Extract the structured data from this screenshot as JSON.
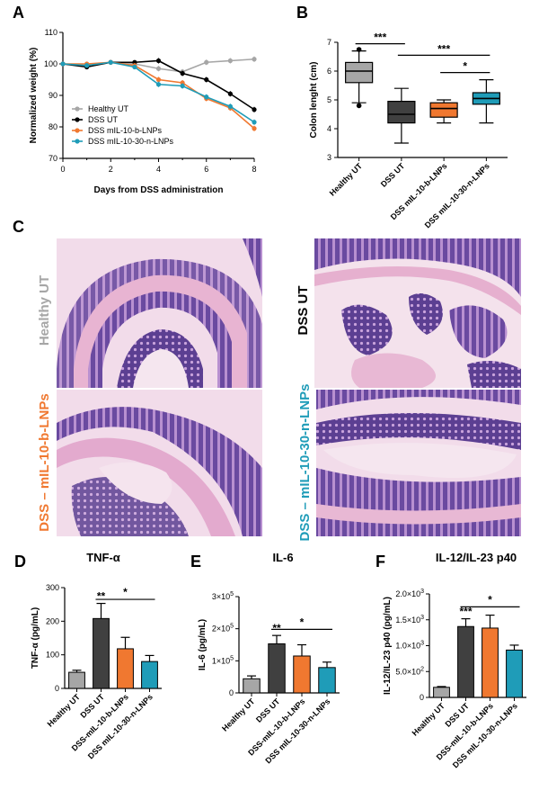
{
  "colors": {
    "healthy": "#a6a6a6",
    "dss": "#000000",
    "dss_dark": "#404040",
    "il10": "#f07830",
    "il1030": "#1f9cb8",
    "tissue_bg": "#f0d8e6",
    "tissue_pink": "#e3a9c9",
    "tissue_purple": "#5a3e8c"
  },
  "panels": {
    "a": "A",
    "b": "B",
    "c": "C",
    "d": "D",
    "e": "E",
    "f": "F"
  },
  "micro_labels": {
    "healthy": "Healthy UT",
    "dss": "DSS UT",
    "il10": "DSS – mIL-10-b-LNPs",
    "il1030": "DSS – mIL-10-30-n-LNPs"
  },
  "chart_data": [
    {
      "id": "A",
      "type": "line",
      "xlabel": "Days from DSS administration",
      "ylabel": "Normalized weight (%)",
      "xlim": [
        0,
        8
      ],
      "ylim": [
        70,
        110
      ],
      "xticks": [
        "0",
        "2",
        "4",
        "6",
        "8"
      ],
      "yticks": [
        "70",
        "80",
        "90",
        "100",
        "110"
      ],
      "legend_position": "bottom-left",
      "series": [
        {
          "name": "Healthy UT",
          "color": "#a6a6a6",
          "x": [
            0,
            1,
            2,
            3,
            4,
            5,
            6,
            7,
            8
          ],
          "y": [
            100,
            99.5,
            100.5,
            100,
            98.5,
            97.5,
            100.5,
            101,
            101.5
          ]
        },
        {
          "name": "DSS UT",
          "color": "#000000",
          "x": [
            0,
            1,
            2,
            3,
            4,
            5,
            6,
            7,
            8
          ],
          "y": [
            100,
            99,
            100.5,
            100.5,
            101,
            97,
            95,
            90.5,
            85.5
          ]
        },
        {
          "name": "DSS mIL-10-b-LNPs",
          "color": "#f07830",
          "x": [
            0,
            1,
            2,
            3,
            4,
            5,
            6,
            7,
            8
          ],
          "y": [
            100,
            100,
            100.5,
            99.5,
            95,
            94,
            89,
            86,
            79.5
          ]
        },
        {
          "name": "DSS mIL-10-30-n-LNPs",
          "color": "#1f9cb8",
          "x": [
            0,
            1,
            2,
            3,
            4,
            5,
            6,
            7,
            8
          ],
          "y": [
            100,
            99.5,
            100.5,
            99,
            93.5,
            93,
            89.5,
            86.5,
            81.5
          ]
        }
      ]
    },
    {
      "id": "B",
      "type": "boxplot",
      "ylabel": "Colon lenght (cm)",
      "ylim": [
        3,
        7
      ],
      "yticks": [
        "3",
        "4",
        "5",
        "6",
        "7"
      ],
      "categories": [
        "Healthy UT",
        "DSS UT",
        "DSS mIL-10-b-LNPs",
        "DSS mIL-10-30-n-LNPs"
      ],
      "boxes": [
        {
          "min": 4.9,
          "q1": 5.6,
          "median": 6.0,
          "q3": 6.3,
          "max": 6.7,
          "outliers": [
            4.8,
            6.75
          ],
          "color": "#a6a6a6"
        },
        {
          "min": 3.5,
          "q1": 4.2,
          "median": 4.5,
          "q3": 4.95,
          "max": 5.4,
          "outliers": [],
          "color": "#404040"
        },
        {
          "min": 4.2,
          "q1": 4.4,
          "median": 4.7,
          "q3": 4.9,
          "max": 5.0,
          "outliers": [],
          "color": "#f07830"
        },
        {
          "min": 4.2,
          "q1": 4.85,
          "median": 5.05,
          "q3": 5.25,
          "max": 5.7,
          "outliers": [],
          "color": "#1f9cb8"
        }
      ],
      "significance": [
        {
          "from": 0,
          "to": 1,
          "label": "***",
          "y": 6.95
        },
        {
          "from": 1,
          "to": 3,
          "label": "***",
          "y": 6.55
        },
        {
          "from": 2,
          "to": 3,
          "label": "*",
          "y": 5.95
        }
      ]
    },
    {
      "id": "D",
      "type": "bar",
      "title": "TNF-α",
      "ylabel": "TNF-α (pg/mL)",
      "ylim": [
        0,
        300
      ],
      "yticks": [
        "0",
        "100",
        "200",
        "300"
      ],
      "categories": [
        "Healthy UT",
        "DSS UT",
        "DSS-mIL-10-b-LNPs",
        "DSS mIL-10-30-n-LNPs"
      ],
      "values": [
        48,
        208,
        118,
        80
      ],
      "errors": [
        6,
        45,
        34,
        18
      ],
      "colors": [
        "#a6a6a6",
        "#404040",
        "#f07830",
        "#1f9cb8"
      ],
      "annotations": [
        {
          "category": 1,
          "label": "**"
        }
      ],
      "significance": [
        {
          "from": 1,
          "to": 3,
          "label": "*",
          "y": 265
        }
      ]
    },
    {
      "id": "E",
      "type": "bar",
      "title": "IL-6",
      "ylabel": "IL-6 (pg/mL)",
      "ylim": [
        0,
        300000
      ],
      "yticks": [
        "0",
        "1×10^5",
        "2×10^5",
        "3×10^5"
      ],
      "categories": [
        "Healthy UT",
        "DSS UT",
        "DSS-mIL-10-b-LNPs",
        "DSS mIL-10-30-n-LNPs"
      ],
      "values": [
        44000,
        153000,
        115000,
        79000
      ],
      "errors": [
        9000,
        26000,
        35000,
        17000
      ],
      "colors": [
        "#a6a6a6",
        "#404040",
        "#f07830",
        "#1f9cb8"
      ],
      "annotations": [
        {
          "category": 1,
          "label": "**"
        }
      ],
      "significance": [
        {
          "from": 1,
          "to": 3,
          "label": "*",
          "y": 198000
        }
      ]
    },
    {
      "id": "F",
      "type": "bar",
      "title": "IL-12/IL-23 p40",
      "ylabel": "IL-12/IL-23 p40 (pg/mL)",
      "ylim": [
        0,
        2000
      ],
      "yticks": [
        "0",
        "5.0×10^2",
        "1.0×10^3",
        "1.5×10^3",
        "2.0×10^3"
      ],
      "categories": [
        "Healthy UT",
        "DSS UT",
        "DSS-mIL-10-b-LNPs",
        "DSS mIL-10-30-n-LNPs"
      ],
      "values": [
        195,
        1370,
        1340,
        915
      ],
      "errors": [
        15,
        150,
        250,
        95
      ],
      "colors": [
        "#a6a6a6",
        "#404040",
        "#f07830",
        "#1f9cb8"
      ],
      "annotations": [
        {
          "category": 1,
          "label": "***"
        }
      ],
      "significance": [
        {
          "from": 1,
          "to": 3,
          "label": "*",
          "y": 1750
        }
      ]
    }
  ]
}
